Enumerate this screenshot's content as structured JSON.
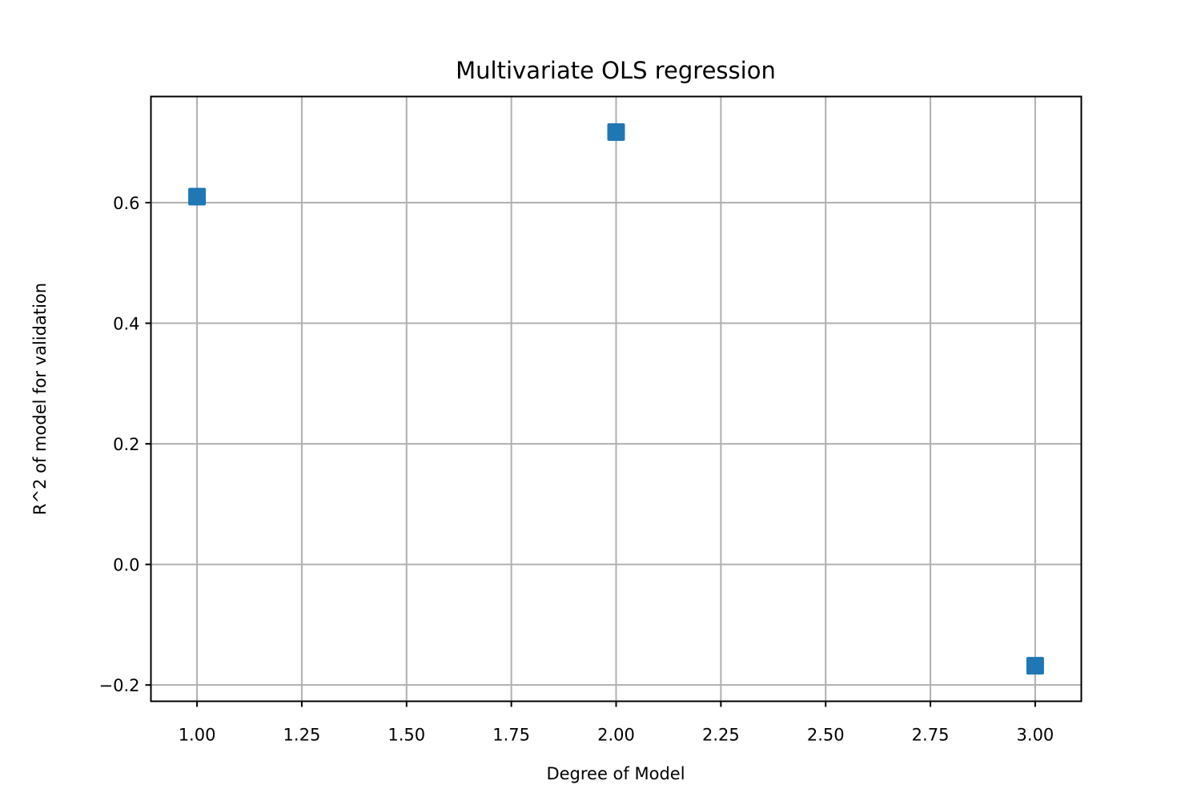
{
  "chart_data": {
    "type": "scatter",
    "title": "Multivariate OLS regression",
    "xlabel": "Degree of Model",
    "ylabel": "R^2 of model for validation",
    "xlim": [
      0.89,
      3.11
    ],
    "ylim": [
      -0.227,
      0.776
    ],
    "xticks": [
      1.0,
      1.25,
      1.5,
      1.75,
      2.0,
      2.25,
      2.5,
      2.75,
      3.0
    ],
    "xtick_labels": [
      "1.00",
      "1.25",
      "1.50",
      "1.75",
      "2.00",
      "2.25",
      "2.50",
      "2.75",
      "3.00"
    ],
    "yticks": [
      -0.2,
      0.0,
      0.2,
      0.4,
      0.6
    ],
    "ytick_labels": [
      "−0.2",
      "0.0",
      "0.2",
      "0.4",
      "0.6"
    ],
    "grid": true,
    "marker": "square",
    "points": [
      {
        "x": 1.0,
        "y": 0.61
      },
      {
        "x": 2.0,
        "y": 0.717
      },
      {
        "x": 3.0,
        "y": -0.168
      }
    ],
    "colors": {
      "marker": "#1f77b4",
      "grid": "#b0b0b0",
      "axes": "#000000"
    }
  }
}
